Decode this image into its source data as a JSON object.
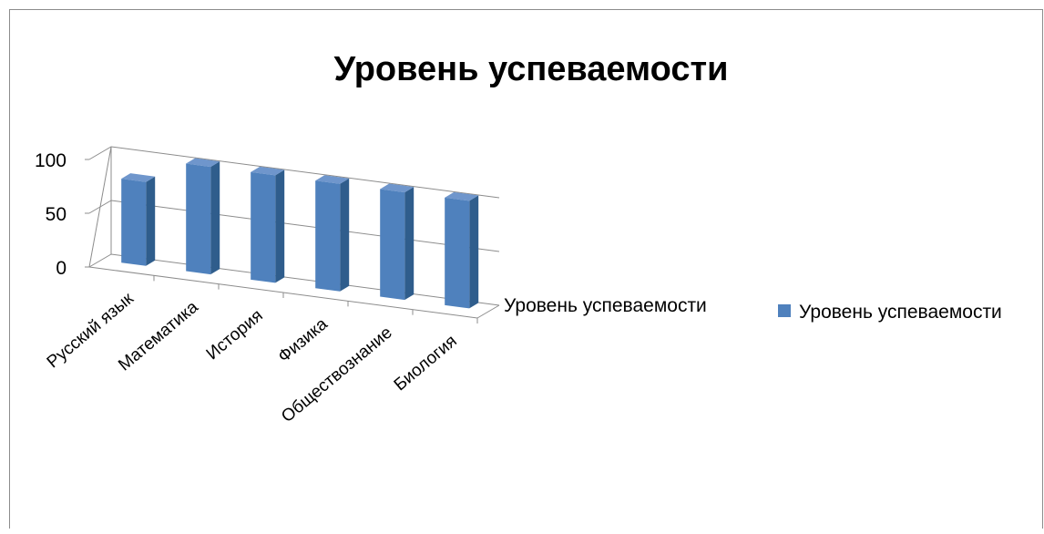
{
  "chart_data": {
    "type": "bar",
    "title": "Уровень успеваемости",
    "categories": [
      "Русский язык",
      "Математика",
      "История",
      "Физика",
      "Обществознание",
      "Биология"
    ],
    "series": [
      {
        "name": "Уровень успеваемости",
        "values": [
          78,
          100,
          100,
          100,
          100,
          100
        ],
        "color": "#4f81bd"
      }
    ],
    "series_axis_label": "Уровень успеваемости",
    "yticks": [
      0,
      50,
      100
    ],
    "ylim": [
      0,
      100
    ],
    "grid": true,
    "legend_position": "right",
    "perspective": "3d"
  },
  "colors": {
    "bar_front": "#4f81bd",
    "bar_side": "#2f5d8c",
    "bar_top": "#6f96cc"
  }
}
